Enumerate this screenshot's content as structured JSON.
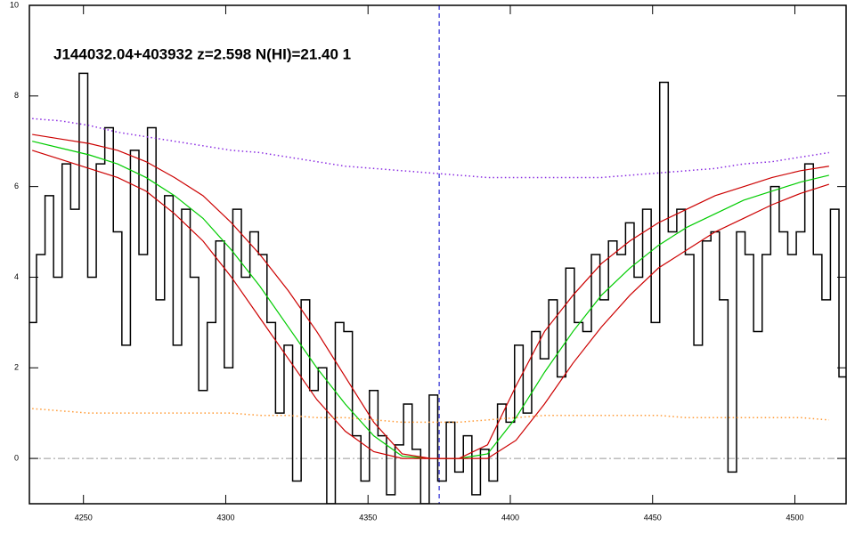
{
  "chart_data": {
    "type": "spectrum",
    "title": "J144032.04+403932 z=2.598 N(HI)=21.40 1",
    "xlim": [
      4231,
      4518
    ],
    "ylim": [
      -1,
      10
    ],
    "xticks": [
      4250,
      4300,
      4350,
      4400,
      4450,
      4500
    ],
    "yticks": [
      0,
      2,
      4,
      6,
      8,
      10
    ],
    "vline": 4375,
    "vline_color": "#0000cc",
    "hline": 0,
    "hline_color": "#999999",
    "series": [
      {
        "style": "steps",
        "color": "#000000",
        "x": [
          4232,
          4235,
          4238,
          4241,
          4244,
          4247,
          4250,
          4253,
          4256,
          4259,
          4262,
          4265,
          4268,
          4271,
          4274,
          4277,
          4280,
          4283,
          4286,
          4289,
          4292,
          4295,
          4298,
          4301,
          4304,
          4307,
          4310,
          4313,
          4316,
          4319,
          4322,
          4325,
          4328,
          4331,
          4334,
          4337,
          4340,
          4343,
          4346,
          4349,
          4352,
          4355,
          4358,
          4361,
          4364,
          4367,
          4370,
          4373,
          4376,
          4379,
          4382,
          4385,
          4388,
          4391,
          4394,
          4397,
          4400,
          4403,
          4406,
          4409,
          4412,
          4415,
          4418,
          4421,
          4424,
          4427,
          4430,
          4433,
          4436,
          4439,
          4442,
          4445,
          4448,
          4451,
          4454,
          4457,
          4460,
          4463,
          4466,
          4469,
          4472,
          4475,
          4478,
          4481,
          4484,
          4487,
          4490,
          4493,
          4496,
          4499,
          4502,
          4505,
          4508,
          4511,
          4514,
          4517
        ],
        "values": [
          3.0,
          4.5,
          5.8,
          4.0,
          6.5,
          5.5,
          8.5,
          4.0,
          6.5,
          7.3,
          5.0,
          2.5,
          6.8,
          4.5,
          7.3,
          3.5,
          5.8,
          2.5,
          5.5,
          4.0,
          1.5,
          3.0,
          4.8,
          2.0,
          5.5,
          4.0,
          5.0,
          4.5,
          3.0,
          1.0,
          2.5,
          -0.5,
          3.5,
          1.5,
          2.0,
          -1.0,
          3.0,
          2.8,
          0.5,
          -0.5,
          1.5,
          0.5,
          -0.8,
          0.3,
          1.2,
          0.2,
          -1.0,
          1.4,
          -0.5,
          0.8,
          -0.3,
          0.5,
          -0.8,
          0.2,
          -0.5,
          1.2,
          0.8,
          2.5,
          1.0,
          2.8,
          2.2,
          3.5,
          1.8,
          4.2,
          3.0,
          2.8,
          4.5,
          3.5,
          4.8,
          4.5,
          5.2,
          4.0,
          5.5,
          3.0,
          8.3,
          5.0,
          5.5,
          4.5,
          2.5,
          4.8,
          5.0,
          3.5,
          -0.3,
          5.0,
          4.5,
          2.8,
          4.5,
          6.0,
          5.0,
          4.5,
          5.0,
          6.5,
          4.5,
          3.5,
          5.5,
          1.8
        ]
      },
      {
        "style": "solid",
        "color": "#00cc00",
        "x": [
          4232,
          4242,
          4252,
          4262,
          4272,
          4282,
          4292,
          4302,
          4312,
          4322,
          4332,
          4342,
          4352,
          4362,
          4372,
          4382,
          4392,
          4402,
          4412,
          4422,
          4432,
          4442,
          4452,
          4462,
          4472,
          4482,
          4492,
          4502,
          4512
        ],
        "values": [
          7.0,
          6.85,
          6.7,
          6.5,
          6.2,
          5.8,
          5.3,
          4.6,
          3.8,
          2.9,
          2.0,
          1.2,
          0.5,
          0.05,
          0,
          0,
          0.1,
          0.9,
          1.9,
          2.8,
          3.6,
          4.2,
          4.7,
          5.1,
          5.4,
          5.7,
          5.9,
          6.1,
          6.25
        ]
      },
      {
        "style": "solid",
        "color": "#cc0000",
        "x": [
          4232,
          4242,
          4252,
          4262,
          4272,
          4282,
          4292,
          4302,
          4312,
          4322,
          4332,
          4342,
          4352,
          4362,
          4372,
          4382,
          4392,
          4402,
          4412,
          4422,
          4432,
          4442,
          4452,
          4462,
          4472,
          4482,
          4492,
          4502,
          4512
        ],
        "values": [
          7.15,
          7.05,
          6.95,
          6.8,
          6.55,
          6.2,
          5.8,
          5.2,
          4.5,
          3.7,
          2.8,
          1.8,
          0.8,
          0.1,
          0,
          0,
          0.3,
          1.6,
          2.8,
          3.6,
          4.3,
          4.8,
          5.2,
          5.5,
          5.8,
          6.0,
          6.2,
          6.35,
          6.45
        ]
      },
      {
        "style": "solid",
        "color": "#cc0000",
        "x": [
          4232,
          4242,
          4252,
          4262,
          4272,
          4282,
          4292,
          4302,
          4312,
          4322,
          4332,
          4342,
          4352,
          4362,
          4372,
          4382,
          4392,
          4402,
          4412,
          4422,
          4432,
          4442,
          4452,
          4462,
          4472,
          4482,
          4492,
          4502,
          4512
        ],
        "values": [
          6.8,
          6.6,
          6.4,
          6.2,
          5.9,
          5.4,
          4.8,
          4.0,
          3.1,
          2.2,
          1.3,
          0.6,
          0.15,
          0,
          0,
          0,
          0,
          0.4,
          1.2,
          2.1,
          2.9,
          3.6,
          4.2,
          4.6,
          5.0,
          5.3,
          5.6,
          5.85,
          6.05
        ]
      },
      {
        "style": "dotted",
        "color": "#8a2be2",
        "x": [
          4232,
          4242,
          4252,
          4262,
          4272,
          4282,
          4292,
          4302,
          4312,
          4322,
          4332,
          4342,
          4352,
          4362,
          4372,
          4382,
          4392,
          4402,
          4412,
          4422,
          4432,
          4442,
          4452,
          4462,
          4472,
          4482,
          4492,
          4502,
          4512
        ],
        "values": [
          7.5,
          7.45,
          7.35,
          7.2,
          7.1,
          7.0,
          6.9,
          6.8,
          6.75,
          6.65,
          6.55,
          6.45,
          6.4,
          6.35,
          6.3,
          6.25,
          6.2,
          6.2,
          6.2,
          6.2,
          6.2,
          6.25,
          6.3,
          6.35,
          6.4,
          6.5,
          6.55,
          6.65,
          6.75
        ]
      },
      {
        "style": "dotted",
        "color": "#ff9933",
        "x": [
          4232,
          4242,
          4252,
          4262,
          4272,
          4282,
          4292,
          4302,
          4312,
          4322,
          4332,
          4342,
          4352,
          4362,
          4372,
          4382,
          4392,
          4402,
          4412,
          4422,
          4432,
          4442,
          4452,
          4462,
          4472,
          4482,
          4492,
          4502,
          4512
        ],
        "values": [
          1.1,
          1.05,
          1.0,
          1.0,
          1.0,
          1.0,
          1.0,
          1.0,
          0.95,
          0.95,
          0.9,
          0.9,
          0.85,
          0.8,
          0.8,
          0.8,
          0.85,
          0.9,
          0.95,
          0.95,
          0.95,
          0.95,
          0.95,
          0.9,
          0.9,
          0.9,
          0.9,
          0.9,
          0.85
        ]
      }
    ]
  }
}
